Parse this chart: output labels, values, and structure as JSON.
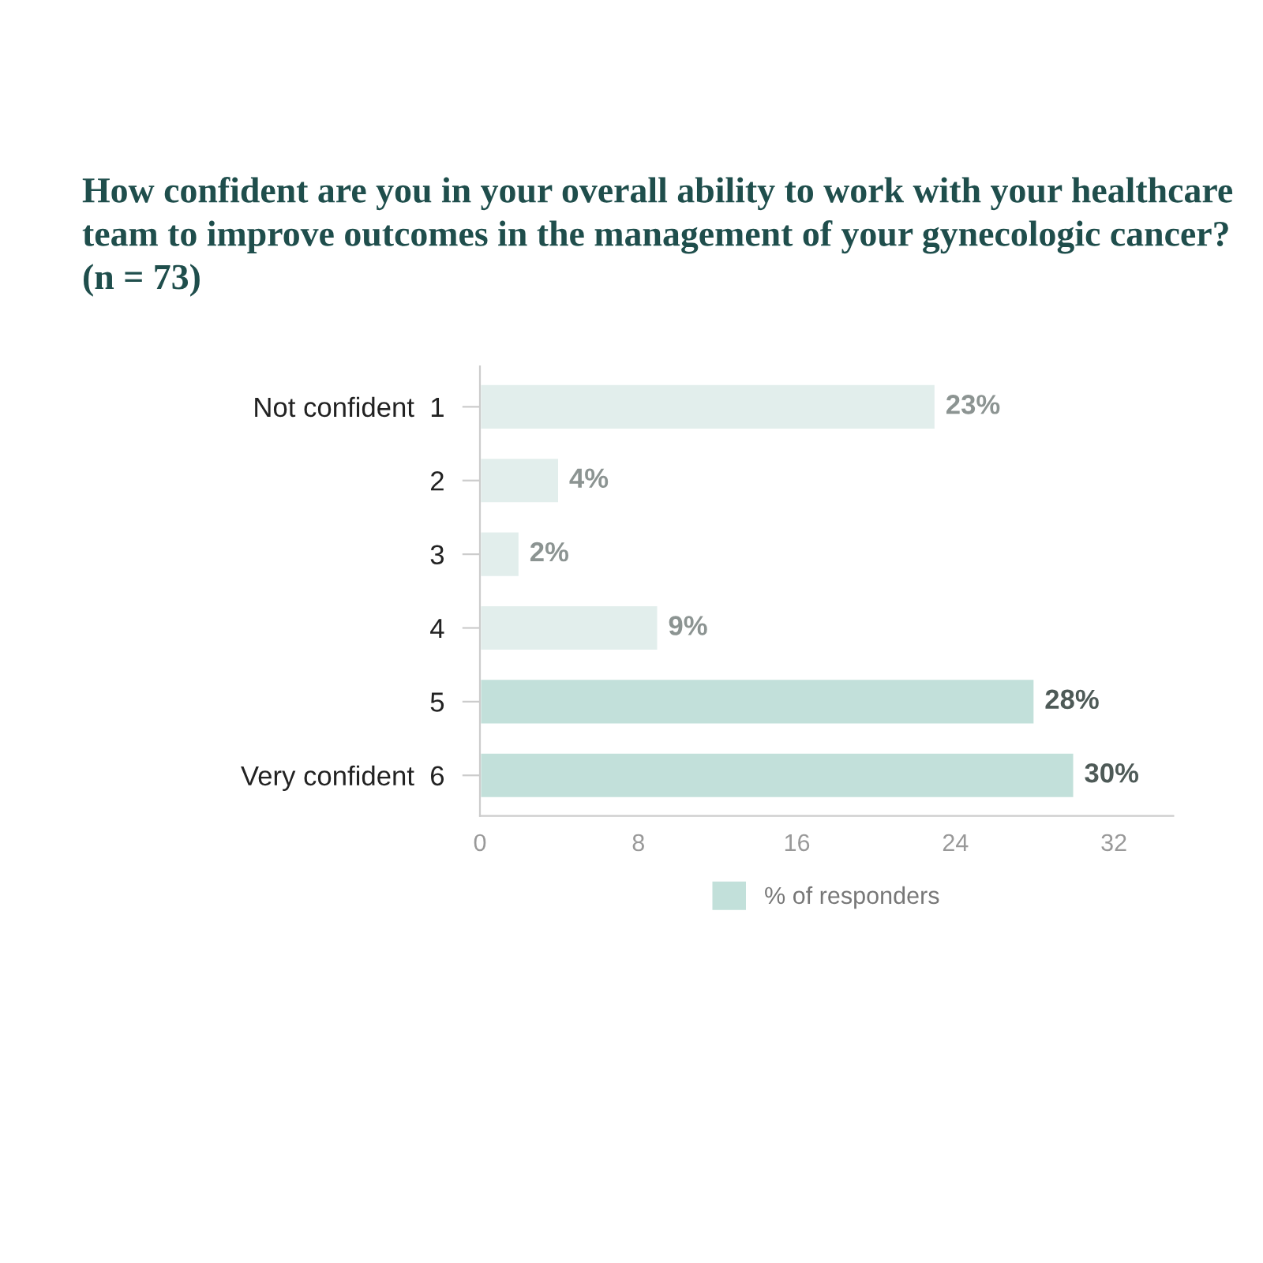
{
  "chart_data": {
    "type": "bar",
    "orientation": "horizontal",
    "title": "How confident are you in your overall ability to work with your healthcare team to improve outcomes in the management of your gynecologic cancer? (n = 73)",
    "categories": [
      "Not confident  1",
      "2",
      "3",
      "4",
      "5",
      "Very confident  6"
    ],
    "series": [
      {
        "name": "% of responders",
        "color": "#c2e0da",
        "colors": [
          "#e2eeec",
          "#e2eeec",
          "#e2eeec",
          "#e2eeec",
          "#c2e0da",
          "#c2e0da"
        ],
        "values": [
          23,
          4,
          2,
          9,
          28,
          30
        ],
        "value_labels": [
          "23%",
          "4%",
          "2%",
          "9%",
          "28%",
          "30%"
        ]
      }
    ],
    "xlim": [
      0,
      35
    ],
    "xticks": [
      0,
      8,
      16,
      24,
      32
    ],
    "grid": false,
    "legend": "bottom"
  }
}
